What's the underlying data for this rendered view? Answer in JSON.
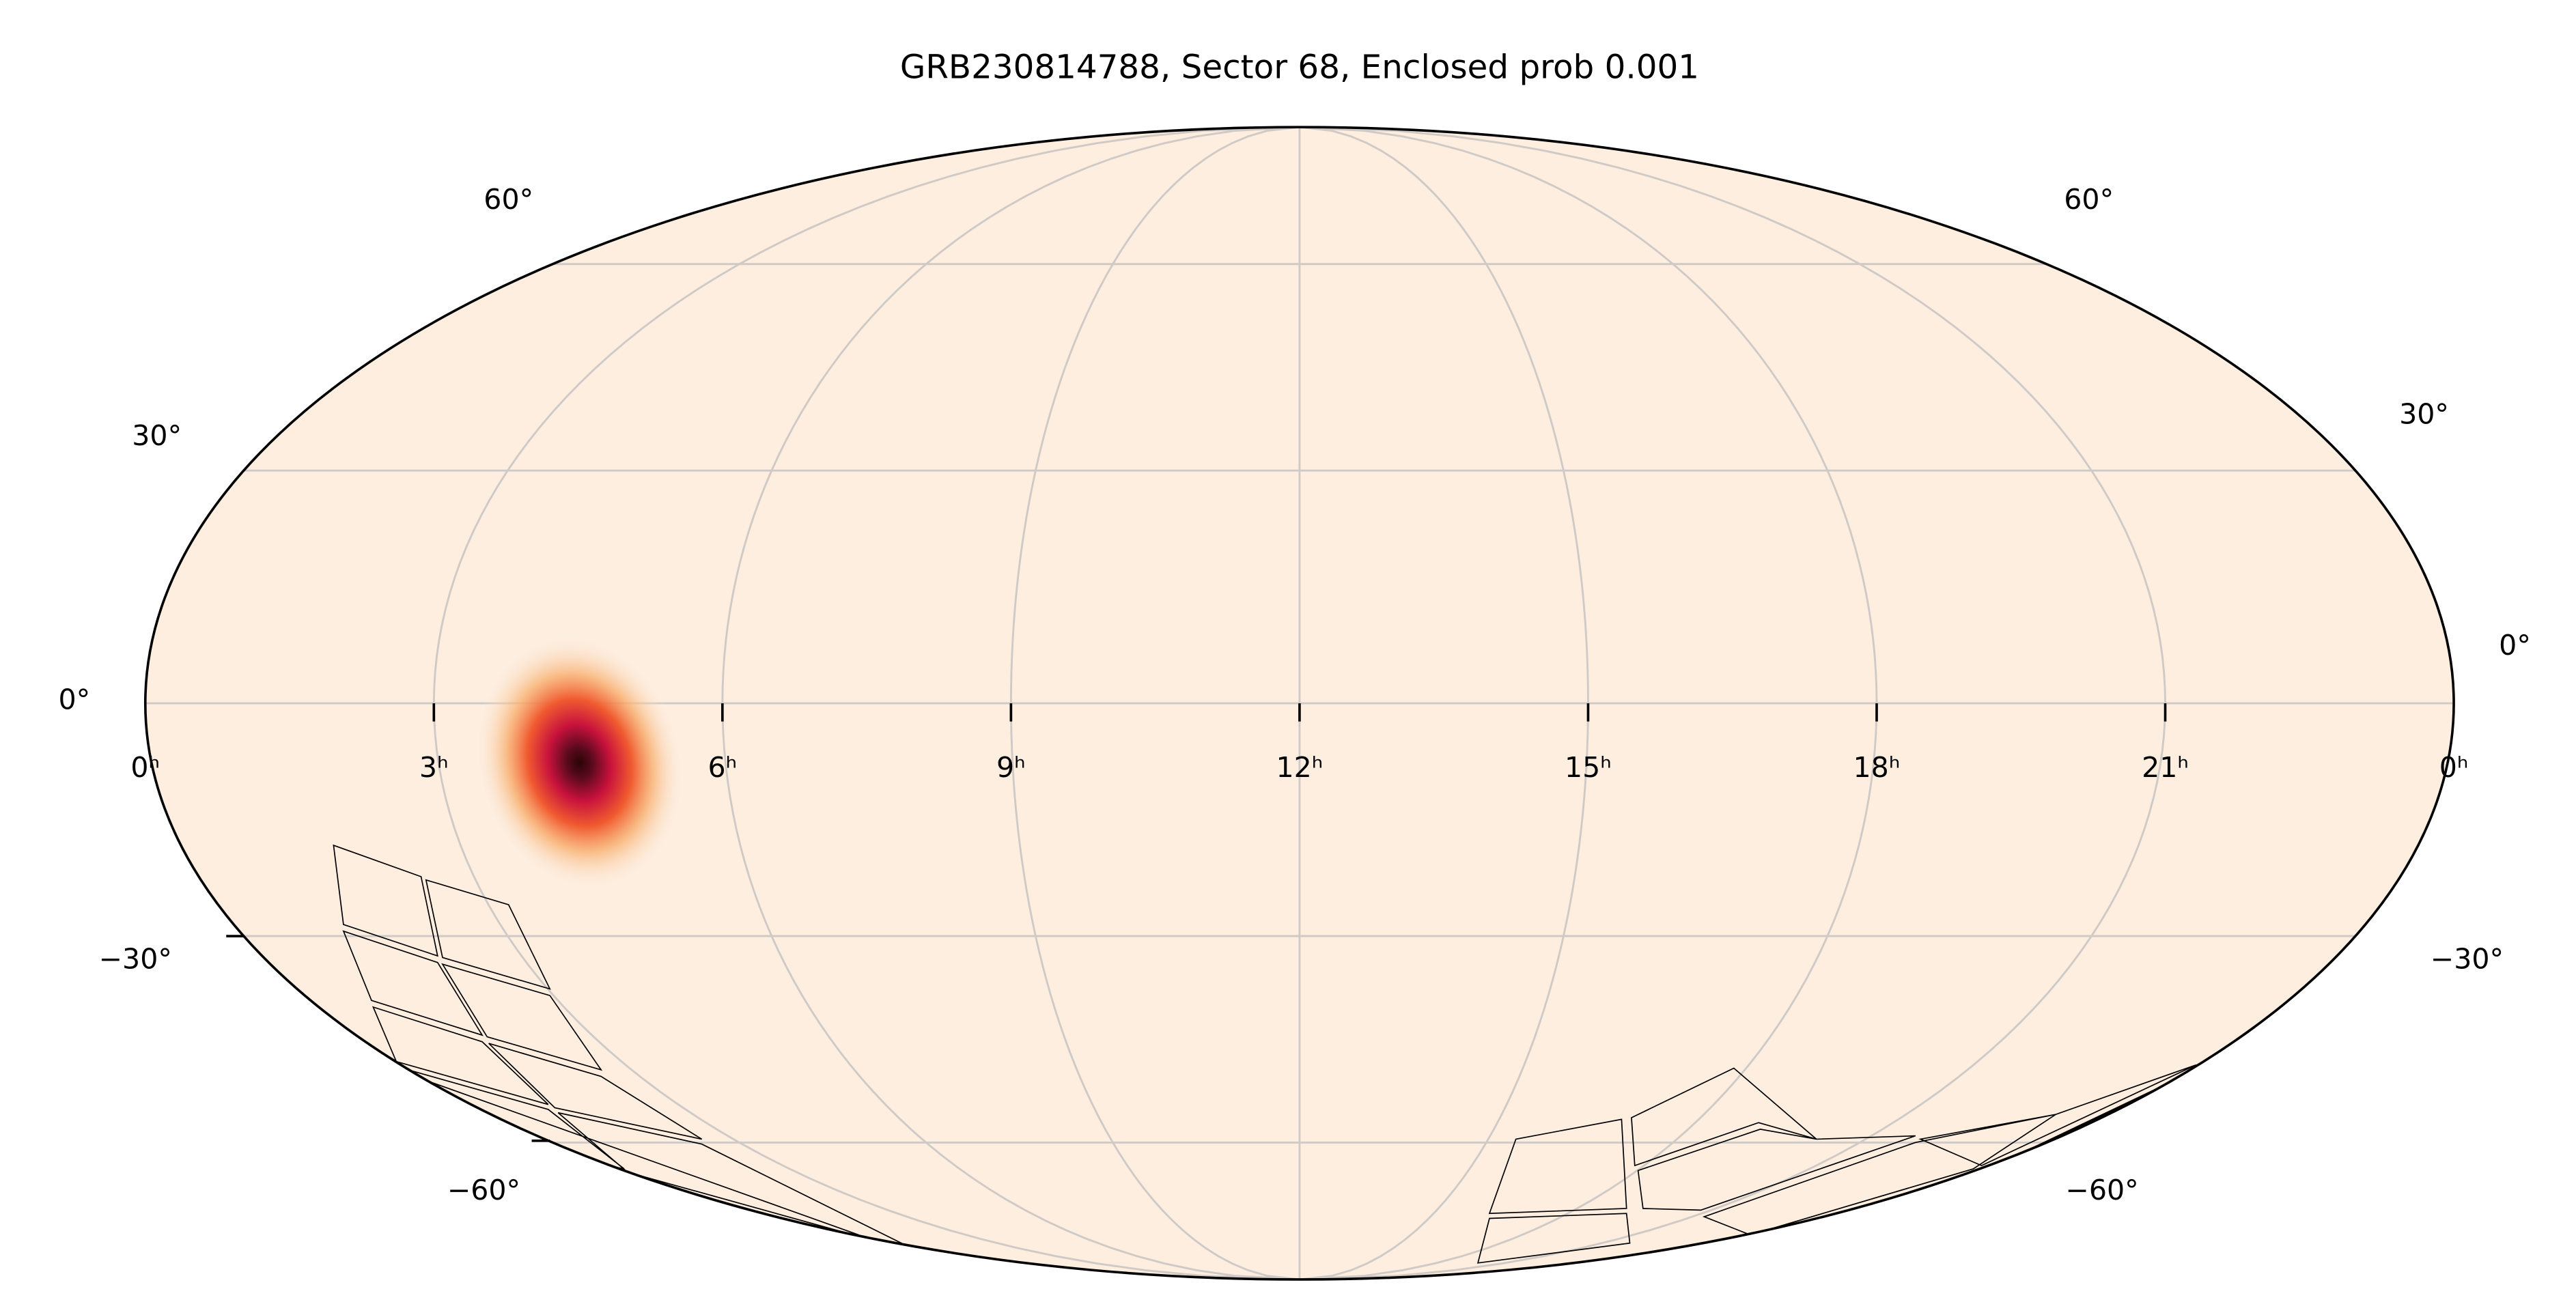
{
  "title": "GRB230814788, Sector 68, Enclosed prob 0.001",
  "ra_labels": [
    "0ʰ",
    "21ʰ",
    "18ʰ",
    "15ʰ",
    "12ʰ",
    "9ʰ",
    "6ʰ",
    "3ʰ",
    "0ʰ"
  ],
  "dec_labels_left": [
    "60°",
    "30°",
    "0°",
    "−30°",
    "−60°"
  ],
  "dec_labels_right": [
    "60°",
    "30°",
    "0°",
    "−30°",
    "−60°"
  ]
}
